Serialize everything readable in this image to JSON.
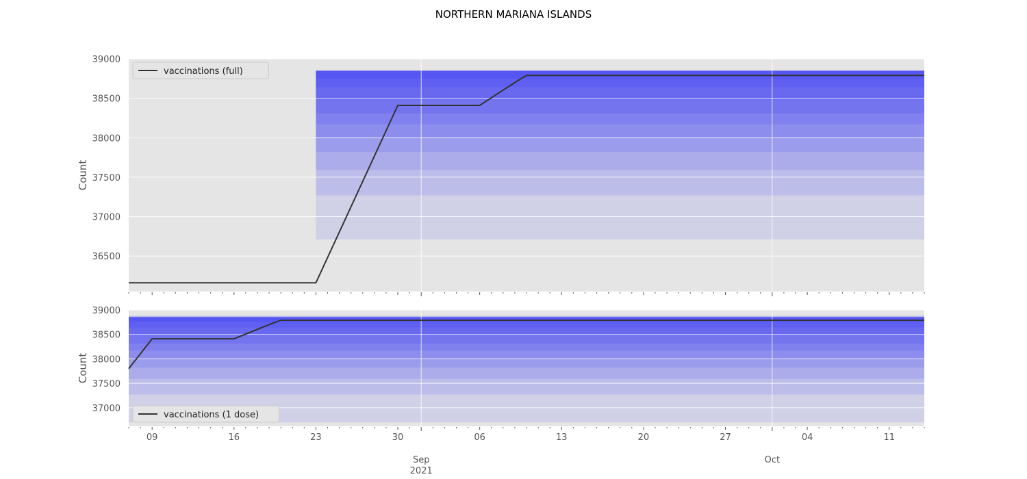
{
  "title": "NORTHERN MARIANA ISLANDS",
  "colors": {
    "panel_bg": "#e5e5e5",
    "grid": "#ffffff",
    "line": "#333333",
    "band": "#0000ff"
  },
  "x_ticks": {
    "major": [
      {
        "date": "2021-09-01",
        "label": "Sep",
        "sublabel": "2021"
      },
      {
        "date": "2021-10-01",
        "label": "Oct",
        "sublabel": ""
      }
    ],
    "minor_labeled": [
      {
        "date": "2021-08-09",
        "label": "09"
      },
      {
        "date": "2021-08-16",
        "label": "16"
      },
      {
        "date": "2021-08-23",
        "label": "23"
      },
      {
        "date": "2021-08-30",
        "label": "30"
      },
      {
        "date": "2021-09-06",
        "label": "06"
      },
      {
        "date": "2021-09-13",
        "label": "13"
      },
      {
        "date": "2021-09-20",
        "label": "20"
      },
      {
        "date": "2021-09-27",
        "label": "27"
      },
      {
        "date": "2021-10-04",
        "label": "04"
      },
      {
        "date": "2021-10-11",
        "label": "11"
      }
    ]
  },
  "chart_data": [
    {
      "type": "line",
      "ylabel": "Count",
      "xlim": [
        "2021-08-07",
        "2021-10-14"
      ],
      "ylim": [
        36050,
        39000
      ],
      "yticks": [
        36500,
        37000,
        37500,
        38000,
        38500,
        39000
      ],
      "grid": true,
      "legend_position": "top-left",
      "series": [
        {
          "name": "vaccinations (full)",
          "points": [
            [
              "2021-08-07",
              36160
            ],
            [
              "2021-08-23",
              36160
            ],
            [
              "2021-08-30",
              38410
            ],
            [
              "2021-09-06",
              38410
            ],
            [
              "2021-09-09",
              38700
            ],
            [
              "2021-09-10",
              38790
            ],
            [
              "2021-10-14",
              38790
            ]
          ]
        }
      ],
      "forecast_bands": {
        "start": "2021-08-23",
        "levels": [
          {
            "low": 36710,
            "high": 38850
          },
          {
            "low": 37270,
            "high": 38850
          },
          {
            "low": 37590,
            "high": 38850
          },
          {
            "low": 37820,
            "high": 38850
          },
          {
            "low": 38000,
            "high": 38850
          },
          {
            "low": 38170,
            "high": 38850
          },
          {
            "low": 38310,
            "high": 38850
          },
          {
            "low": 38480,
            "high": 38850
          },
          {
            "low": 38640,
            "high": 38850
          },
          {
            "low": 38750,
            "high": 38850
          }
        ]
      }
    },
    {
      "type": "line",
      "ylabel": "Count",
      "xlim": [
        "2021-08-07",
        "2021-10-14"
      ],
      "ylim": [
        36620,
        39000
      ],
      "yticks": [
        37000,
        37500,
        38000,
        38500,
        39000
      ],
      "grid": true,
      "legend_position": "bottom-left",
      "series": [
        {
          "name": "vaccinations (1 dose)",
          "points": [
            [
              "2021-08-07",
              37800
            ],
            [
              "2021-08-09",
              38410
            ],
            [
              "2021-08-16",
              38410
            ],
            [
              "2021-08-19",
              38700
            ],
            [
              "2021-08-20",
              38790
            ],
            [
              "2021-10-14",
              38790
            ]
          ]
        }
      ],
      "forecast_bands": {
        "start": "2021-08-07",
        "levels": [
          {
            "low": 36700,
            "high": 38880
          },
          {
            "low": 37270,
            "high": 38880
          },
          {
            "low": 37590,
            "high": 38860
          },
          {
            "low": 37820,
            "high": 38860
          },
          {
            "low": 38000,
            "high": 38860
          },
          {
            "low": 38170,
            "high": 38860
          },
          {
            "low": 38310,
            "high": 38850
          },
          {
            "low": 38480,
            "high": 38850
          },
          {
            "low": 38640,
            "high": 38850
          },
          {
            "low": 38750,
            "high": 38850
          }
        ]
      }
    }
  ]
}
